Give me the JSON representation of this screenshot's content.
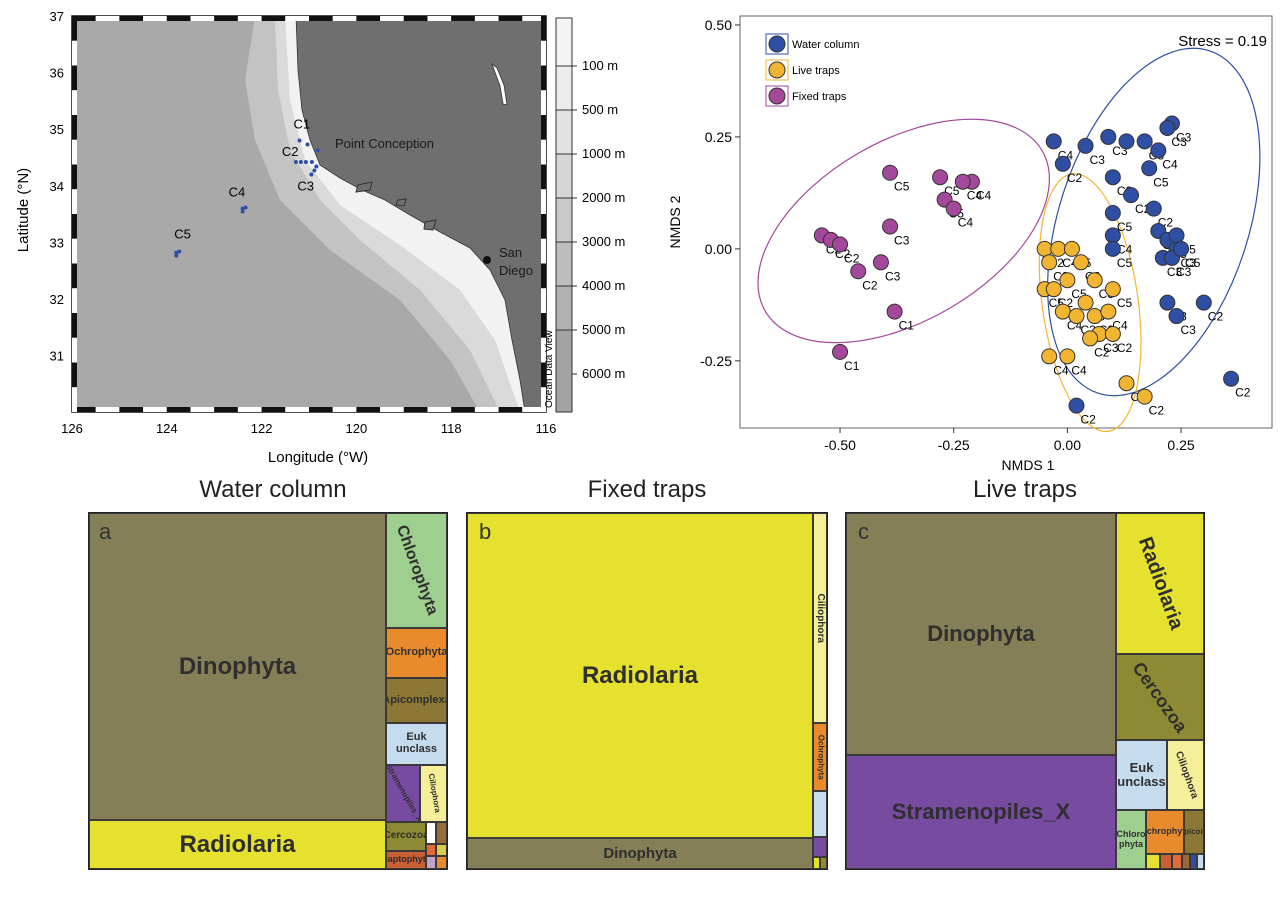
{
  "map": {
    "tick_x": [
      "126",
      "124",
      "122",
      "120",
      "118",
      "116"
    ],
    "tick_y": [
      "37",
      "36",
      "35",
      "34",
      "33",
      "32",
      "31"
    ],
    "xlabel": "Longitude  (°W)",
    "ylabel": "Latitude (°N)",
    "stations": [
      {
        "name": "C1",
        "lon": 121.2,
        "lat": 34.8
      },
      {
        "name": "C2",
        "lon": 121.15,
        "lat": 34.42
      },
      {
        "name": "C3",
        "lon": 120.95,
        "lat": 34.2
      },
      {
        "name": "C4",
        "lon": 122.4,
        "lat": 33.6
      },
      {
        "name": "C5",
        "lon": 123.8,
        "lat": 32.82
      }
    ],
    "place_labels": {
      "point_conception": "Point Conception",
      "san_diego_1": "San",
      "san_diego_2": "Diego"
    },
    "depth_labels": [
      "100 m",
      "500 m",
      "1000 m",
      "2000 m",
      "3000 m",
      "4000 m",
      "5000 m",
      "6000 m"
    ],
    "watermark": "Ocean Data View",
    "colors": {
      "land": "#6f6f6f",
      "deep": "#a9a9a9",
      "mid": "#c3c3c3",
      "shelf": "#dadada",
      "coast": "#f2f2f2",
      "station": "#2e4fa3"
    }
  },
  "chart_data": {
    "type": "scatter",
    "xlabel": "NMDS 1",
    "ylabel": "NMDS 2",
    "xlim": [
      -0.72,
      0.45
    ],
    "ylim": [
      -0.4,
      0.52
    ],
    "x_ticks": [
      "-0.50",
      "-0.25",
      "0.00",
      "0.25"
    ],
    "y_ticks": [
      "0.50",
      "0.25",
      "0.00",
      "-0.25"
    ],
    "annotation": "Stress = 0.19",
    "series": [
      {
        "name": "Water column",
        "color": "#2e4fa3",
        "points": [
          [
            0.09,
            0.25,
            "C3"
          ],
          [
            0.13,
            0.24,
            ""
          ],
          [
            0.04,
            0.23,
            "C3"
          ],
          [
            -0.03,
            0.24,
            "C4"
          ],
          [
            -0.01,
            0.19,
            "C2"
          ],
          [
            0.23,
            0.28,
            "C3"
          ],
          [
            0.22,
            0.27,
            "C3"
          ],
          [
            0.17,
            0.24,
            "C3"
          ],
          [
            0.2,
            0.22,
            "C4"
          ],
          [
            0.18,
            0.18,
            "C5"
          ],
          [
            0.1,
            0.16,
            "C2"
          ],
          [
            0.14,
            0.12,
            "C2"
          ],
          [
            0.19,
            0.09,
            "C2"
          ],
          [
            0.1,
            0.08,
            "C5"
          ],
          [
            0.1,
            0.03,
            "C4"
          ],
          [
            0.1,
            0.0,
            "C5"
          ],
          [
            0.2,
            0.04,
            "C5"
          ],
          [
            0.22,
            0.02,
            "C5"
          ],
          [
            0.24,
            0.0,
            "C3"
          ],
          [
            0.21,
            -0.02,
            "C3"
          ],
          [
            0.24,
            0.03,
            "C5"
          ],
          [
            0.23,
            -0.02,
            "C3"
          ],
          [
            0.25,
            0.0,
            "C5"
          ],
          [
            0.22,
            -0.12,
            "C3"
          ],
          [
            0.3,
            -0.12,
            "C2"
          ],
          [
            0.24,
            -0.15,
            "C3"
          ],
          [
            0.36,
            -0.29,
            "C2"
          ],
          [
            0.02,
            -0.35,
            "C2"
          ]
        ]
      },
      {
        "name": "Live traps",
        "color": "#f2b531",
        "points": [
          [
            -0.05,
            0.0,
            "C2"
          ],
          [
            -0.02,
            0.0,
            "C4"
          ],
          [
            0.01,
            0.0,
            "C5"
          ],
          [
            -0.04,
            -0.03,
            "C2"
          ],
          [
            -0.05,
            -0.09,
            "C5"
          ],
          [
            -0.03,
            -0.09,
            "C2"
          ],
          [
            0.0,
            -0.07,
            "C5"
          ],
          [
            0.03,
            -0.03,
            "C2"
          ],
          [
            0.06,
            -0.07,
            "C3"
          ],
          [
            0.1,
            -0.09,
            "C5"
          ],
          [
            -0.01,
            -0.14,
            "C4"
          ],
          [
            0.02,
            -0.15,
            "C2"
          ],
          [
            0.04,
            -0.12,
            "C3"
          ],
          [
            0.06,
            -0.15,
            "C2"
          ],
          [
            0.09,
            -0.14,
            "C4"
          ],
          [
            0.07,
            -0.19,
            "C3"
          ],
          [
            0.05,
            -0.2,
            "C2"
          ],
          [
            0.1,
            -0.19,
            "C2"
          ],
          [
            -0.04,
            -0.24,
            "C4"
          ],
          [
            0.0,
            -0.24,
            "C4"
          ],
          [
            0.13,
            -0.3,
            "C4"
          ],
          [
            0.17,
            -0.33,
            "C2"
          ]
        ]
      },
      {
        "name": "Fixed traps",
        "color": "#a3489b",
        "points": [
          [
            -0.39,
            0.17,
            "C5"
          ],
          [
            -0.28,
            0.16,
            "C5"
          ],
          [
            -0.21,
            0.15,
            "C4"
          ],
          [
            -0.23,
            0.15,
            "C4"
          ],
          [
            -0.27,
            0.11,
            "C5"
          ],
          [
            -0.25,
            0.09,
            "C4"
          ],
          [
            -0.39,
            0.05,
            "C3"
          ],
          [
            -0.54,
            0.03,
            "C2"
          ],
          [
            -0.52,
            0.02,
            "C2"
          ],
          [
            -0.5,
            0.01,
            "C2"
          ],
          [
            -0.41,
            -0.03,
            "C3"
          ],
          [
            -0.46,
            -0.05,
            "C2"
          ],
          [
            -0.38,
            -0.14,
            "C1"
          ],
          [
            -0.5,
            -0.23,
            "C1"
          ]
        ]
      }
    ]
  },
  "treemaps": [
    {
      "letter": "a",
      "title": "Water column",
      "cells": [
        {
          "label": "Dinophyta",
          "color": "#857f57"
        },
        {
          "label": "Radiolaria",
          "color": "#e6e12e"
        },
        {
          "label": "Chlorophyta",
          "color": "#9ecf8e"
        },
        {
          "label": "Ochrophyta",
          "color": "#e98a2c"
        },
        {
          "label": "Apicomplexa",
          "color": "#8d7735"
        },
        {
          "label": "Euk unclass",
          "color": "#c5dcee"
        },
        {
          "label": "Stramenopiles_X",
          "color": "#764ba0"
        },
        {
          "label": "Ciliophora",
          "color": "#f4ef98"
        },
        {
          "label": "Cercozoa",
          "color": "#8c8a33"
        },
        {
          "label": "Haptophyta",
          "color": "#c95f32"
        }
      ]
    },
    {
      "letter": "b",
      "title": "Fixed traps",
      "cells": [
        {
          "label": "Radiolaria",
          "color": "#e6e12e"
        },
        {
          "label": "Dinophyta",
          "color": "#857f57"
        },
        {
          "label": "Ciliophora",
          "color": "#f4ef98"
        },
        {
          "label": "Ochrophyta",
          "color": "#e98a2c"
        }
      ]
    },
    {
      "letter": "c",
      "title": "Live traps",
      "cells": [
        {
          "label": "Dinophyta",
          "color": "#857f57"
        },
        {
          "label": "Stramenopiles_X",
          "color": "#764ba0"
        },
        {
          "label": "Radiolaria",
          "color": "#e6e12e"
        },
        {
          "label": "Cercozoa",
          "color": "#8c8a33"
        },
        {
          "label": "Euk unclass",
          "color": "#c5dcee"
        },
        {
          "label": "Ciliophora",
          "color": "#f4ef98"
        },
        {
          "label": "Chloro phyta",
          "color": "#9ecf8e"
        },
        {
          "label": "Ochrophyta",
          "color": "#e98a2c"
        },
        {
          "label": "Apicom.",
          "color": "#8d7735"
        }
      ]
    }
  ]
}
